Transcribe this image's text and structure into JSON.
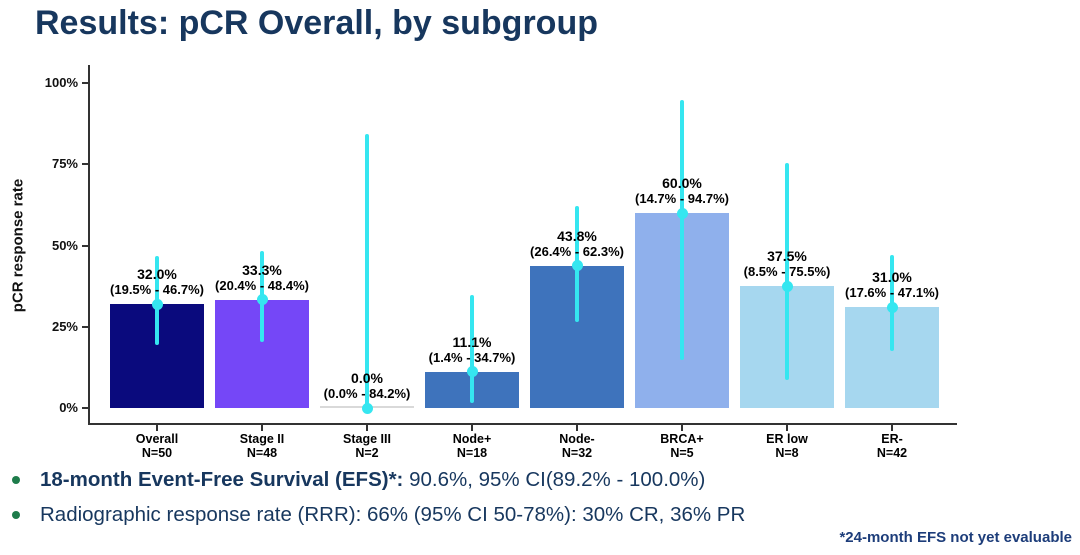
{
  "title": "Results: pCR Overall, by subgroup",
  "chart_data": {
    "type": "bar",
    "title": "",
    "xlabel": "",
    "ylabel": "pCR response rate",
    "ylim": [
      0,
      100
    ],
    "ytick_values": [
      0,
      25,
      50,
      75,
      100
    ],
    "ytick_labels": [
      "0%",
      "25%",
      "50%",
      "75%",
      "100%"
    ],
    "grid": false,
    "legend": "none",
    "error_bar_color": "#35E6F0",
    "bars": [
      {
        "category": "Overall",
        "n_label": "N=50",
        "value": 32.0,
        "value_label": "32.0%",
        "ci_low": 19.5,
        "ci_high": 46.7,
        "ci_label": "(19.5% - 46.7%)",
        "color": "#0A0A7D"
      },
      {
        "category": "Stage II",
        "n_label": "N=48",
        "value": 33.3,
        "value_label": "33.3%",
        "ci_low": 20.4,
        "ci_high": 48.4,
        "ci_label": "(20.4% - 48.4%)",
        "color": "#7547F7"
      },
      {
        "category": "Stage III",
        "n_label": "N=2",
        "value": 0.0,
        "value_label": "0.0%",
        "ci_low": 0.0,
        "ci_high": 84.2,
        "ci_label": "(0.0% - 84.2%)",
        "color": "#D9D9D9"
      },
      {
        "category": "Node+",
        "n_label": "N=18",
        "value": 11.1,
        "value_label": "11.1%",
        "ci_low": 1.4,
        "ci_high": 34.7,
        "ci_label": "(1.4% - 34.7%)",
        "color": "#3E73BC"
      },
      {
        "category": "Node-",
        "n_label": "N=32",
        "value": 43.8,
        "value_label": "43.8%",
        "ci_low": 26.4,
        "ci_high": 62.3,
        "ci_label": "(26.4% - 62.3%)",
        "color": "#3E73BC"
      },
      {
        "category": "BRCA+",
        "n_label": "N=5",
        "value": 60.0,
        "value_label": "60.0%",
        "ci_low": 14.7,
        "ci_high": 94.7,
        "ci_label": "(14.7% - 94.7%)",
        "color": "#8FB0EC"
      },
      {
        "category": "ER low",
        "n_label": "N=8",
        "value": 37.5,
        "value_label": "37.5%",
        "ci_low": 8.5,
        "ci_high": 75.5,
        "ci_label": "(8.5% - 75.5%)",
        "color": "#A6D7EF"
      },
      {
        "category": "ER-",
        "n_label": "N=42",
        "value": 31.0,
        "value_label": "31.0%",
        "ci_low": 17.6,
        "ci_high": 47.1,
        "ci_label": "(17.6% - 47.1%)",
        "color": "#A6D7EF"
      }
    ]
  },
  "bullets": [
    {
      "lead": "18-month Event-Free Survival (EFS)*:",
      "text": " 90.6%, 95% CI(89.2% - 100.0%)"
    },
    {
      "lead": "",
      "text": "Radiographic response rate (RRR): 66% (95% CI 50-78%): 30% CR, 36% PR"
    }
  ],
  "footnote": "*24-month EFS not yet evaluable",
  "colors": {
    "title": "#17375E",
    "bullet_text": "#17375E",
    "bullet_marker": "#1E7C4B",
    "footnote": "#1D3D7A",
    "axis": "#333333"
  }
}
